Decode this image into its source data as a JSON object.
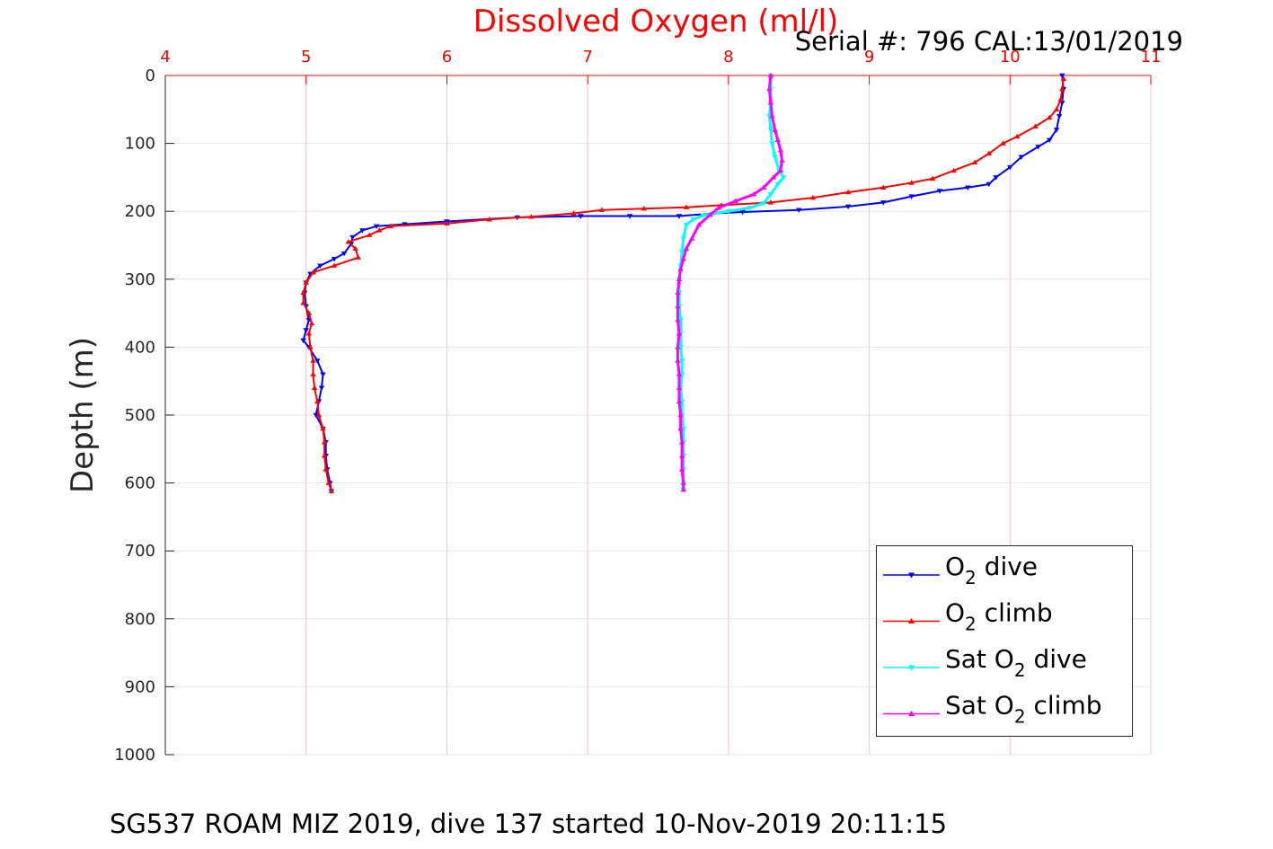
{
  "figure": {
    "title": "Dissolved Oxygen (ml/l)",
    "serial": "Serial #: 796  CAL:13/01/2019",
    "footer": "SG537 ROAM MIZ 2019, dive 137 started 10-Nov-2019 20:11:15"
  },
  "legend": {
    "placement": "lower-right",
    "entries": [
      {
        "pre": "O",
        "sub": "2",
        "post": " dive"
      },
      {
        "pre": "O",
        "sub": "2",
        "post": " climb"
      },
      {
        "pre": "Sat O",
        "sub": "2",
        "post": " dive"
      },
      {
        "pre": "Sat O",
        "sub": "2",
        "post": " climb"
      }
    ]
  },
  "chart_data": {
    "type": "line",
    "title": "Dissolved Oxygen (ml/l)",
    "xlabel": "",
    "ylabel": "Depth (m)",
    "xlim": [
      4,
      11
    ],
    "ylim": [
      0,
      1000
    ],
    "y_reversed": true,
    "x_axis_position": "top",
    "x_ticks": [
      "4",
      "5",
      "6",
      "7",
      "8",
      "9",
      "10",
      "11"
    ],
    "y_ticks": [
      "0",
      "100",
      "200",
      "300",
      "400",
      "500",
      "600",
      "700",
      "800",
      "900",
      "1000"
    ],
    "grid": true,
    "colors": {
      "axis_top": "#ff0000",
      "axis_left": "#262626",
      "grid": "#e6e6e6",
      "grid_v": "#f2c4c4"
    },
    "series": [
      {
        "name": "O2 dive",
        "color": "#0000ff",
        "marker": "triangle-down",
        "points": [
          [
            10.37,
            0
          ],
          [
            10.38,
            20
          ],
          [
            10.37,
            40
          ],
          [
            10.35,
            60
          ],
          [
            10.33,
            80
          ],
          [
            10.28,
            95
          ],
          [
            10.2,
            105
          ],
          [
            10.08,
            120
          ],
          [
            10.0,
            135
          ],
          [
            9.9,
            150
          ],
          [
            9.85,
            160
          ],
          [
            9.7,
            165
          ],
          [
            9.5,
            170
          ],
          [
            9.3,
            178
          ],
          [
            9.1,
            187
          ],
          [
            8.85,
            193
          ],
          [
            8.5,
            198
          ],
          [
            8.1,
            201
          ],
          [
            7.9,
            203
          ],
          [
            7.65,
            207
          ],
          [
            7.3,
            207
          ],
          [
            6.95,
            207
          ],
          [
            6.5,
            209
          ],
          [
            6.0,
            215
          ],
          [
            5.7,
            219
          ],
          [
            5.5,
            222
          ],
          [
            5.4,
            228
          ],
          [
            5.33,
            238
          ],
          [
            5.32,
            248
          ],
          [
            5.27,
            262
          ],
          [
            5.2,
            270
          ],
          [
            5.1,
            280
          ],
          [
            5.03,
            292
          ],
          [
            5.0,
            305
          ],
          [
            4.99,
            320
          ],
          [
            5.0,
            340
          ],
          [
            5.02,
            360
          ],
          [
            5.0,
            375
          ],
          [
            4.98,
            390
          ],
          [
            5.02,
            400
          ],
          [
            5.08,
            420
          ],
          [
            5.12,
            440
          ],
          [
            5.11,
            460
          ],
          [
            5.09,
            480
          ],
          [
            5.07,
            500
          ],
          [
            5.12,
            520
          ],
          [
            5.14,
            540
          ],
          [
            5.14,
            560
          ],
          [
            5.15,
            580
          ],
          [
            5.17,
            600
          ],
          [
            5.18,
            612
          ]
        ]
      },
      {
        "name": "O2 climb",
        "color": "#ff0000",
        "marker": "triangle-up",
        "points": [
          [
            5.18,
            612
          ],
          [
            5.16,
            600
          ],
          [
            5.14,
            580
          ],
          [
            5.13,
            560
          ],
          [
            5.13,
            540
          ],
          [
            5.12,
            520
          ],
          [
            5.09,
            500
          ],
          [
            5.08,
            480
          ],
          [
            5.06,
            460
          ],
          [
            5.05,
            440
          ],
          [
            5.05,
            420
          ],
          [
            5.03,
            400
          ],
          [
            5.02,
            380
          ],
          [
            5.04,
            365
          ],
          [
            5.02,
            350
          ],
          [
            4.98,
            335
          ],
          [
            4.98,
            320
          ],
          [
            5.0,
            305
          ],
          [
            5.05,
            290
          ],
          [
            5.2,
            280
          ],
          [
            5.37,
            268
          ],
          [
            5.35,
            255
          ],
          [
            5.3,
            245
          ],
          [
            5.45,
            235
          ],
          [
            5.52,
            228
          ],
          [
            5.6,
            222
          ],
          [
            6.0,
            218
          ],
          [
            6.3,
            212
          ],
          [
            6.6,
            208
          ],
          [
            6.9,
            203
          ],
          [
            7.1,
            198
          ],
          [
            7.4,
            196
          ],
          [
            7.7,
            194
          ],
          [
            7.95,
            191
          ],
          [
            8.3,
            187
          ],
          [
            8.6,
            180
          ],
          [
            8.85,
            172
          ],
          [
            9.1,
            165
          ],
          [
            9.3,
            158
          ],
          [
            9.45,
            152
          ],
          [
            9.6,
            140
          ],
          [
            9.75,
            128
          ],
          [
            9.85,
            115
          ],
          [
            9.95,
            100
          ],
          [
            10.05,
            90
          ],
          [
            10.18,
            75
          ],
          [
            10.28,
            62
          ],
          [
            10.33,
            50
          ],
          [
            10.36,
            35
          ],
          [
            10.37,
            20
          ],
          [
            10.38,
            5
          ]
        ]
      },
      {
        "name": "Sat O2 dive",
        "color": "#00ffff",
        "marker": "triangle-down",
        "points": [
          [
            8.3,
            0
          ],
          [
            8.3,
            20
          ],
          [
            8.3,
            40
          ],
          [
            8.29,
            60
          ],
          [
            8.3,
            80
          ],
          [
            8.31,
            100
          ],
          [
            8.33,
            120
          ],
          [
            8.36,
            140
          ],
          [
            8.39,
            150
          ],
          [
            8.35,
            160
          ],
          [
            8.3,
            175
          ],
          [
            8.25,
            188
          ],
          [
            8.15,
            195
          ],
          [
            8.0,
            200
          ],
          [
            7.9,
            203
          ],
          [
            7.82,
            206
          ],
          [
            7.75,
            212
          ],
          [
            7.7,
            220
          ],
          [
            7.68,
            240
          ],
          [
            7.67,
            260
          ],
          [
            7.66,
            280
          ],
          [
            7.65,
            300
          ],
          [
            7.65,
            320
          ],
          [
            7.65,
            340
          ],
          [
            7.66,
            360
          ],
          [
            7.66,
            380
          ],
          [
            7.66,
            400
          ],
          [
            7.67,
            420
          ],
          [
            7.67,
            440
          ],
          [
            7.66,
            460
          ],
          [
            7.67,
            480
          ],
          [
            7.67,
            500
          ],
          [
            7.68,
            520
          ],
          [
            7.68,
            540
          ],
          [
            7.68,
            560
          ],
          [
            7.68,
            580
          ],
          [
            7.68,
            600
          ],
          [
            7.68,
            610
          ]
        ]
      },
      {
        "name": "Sat O2 climb",
        "color": "#ff00ff",
        "marker": "triangle-up",
        "points": [
          [
            7.68,
            610
          ],
          [
            7.68,
            600
          ],
          [
            7.67,
            580
          ],
          [
            7.67,
            560
          ],
          [
            7.67,
            540
          ],
          [
            7.66,
            520
          ],
          [
            7.66,
            500
          ],
          [
            7.65,
            480
          ],
          [
            7.65,
            460
          ],
          [
            7.65,
            440
          ],
          [
            7.64,
            420
          ],
          [
            7.64,
            400
          ],
          [
            7.65,
            380
          ],
          [
            7.64,
            360
          ],
          [
            7.64,
            340
          ],
          [
            7.64,
            320
          ],
          [
            7.65,
            300
          ],
          [
            7.66,
            285
          ],
          [
            7.68,
            270
          ],
          [
            7.7,
            255
          ],
          [
            7.74,
            240
          ],
          [
            7.79,
            220
          ],
          [
            7.87,
            205
          ],
          [
            7.93,
            195
          ],
          [
            8.05,
            185
          ],
          [
            8.18,
            175
          ],
          [
            8.25,
            165
          ],
          [
            8.32,
            150
          ],
          [
            8.37,
            140
          ],
          [
            8.38,
            125
          ],
          [
            8.37,
            110
          ],
          [
            8.35,
            95
          ],
          [
            8.33,
            80
          ],
          [
            8.31,
            60
          ],
          [
            8.3,
            40
          ],
          [
            8.29,
            20
          ],
          [
            8.3,
            0
          ]
        ]
      }
    ]
  }
}
